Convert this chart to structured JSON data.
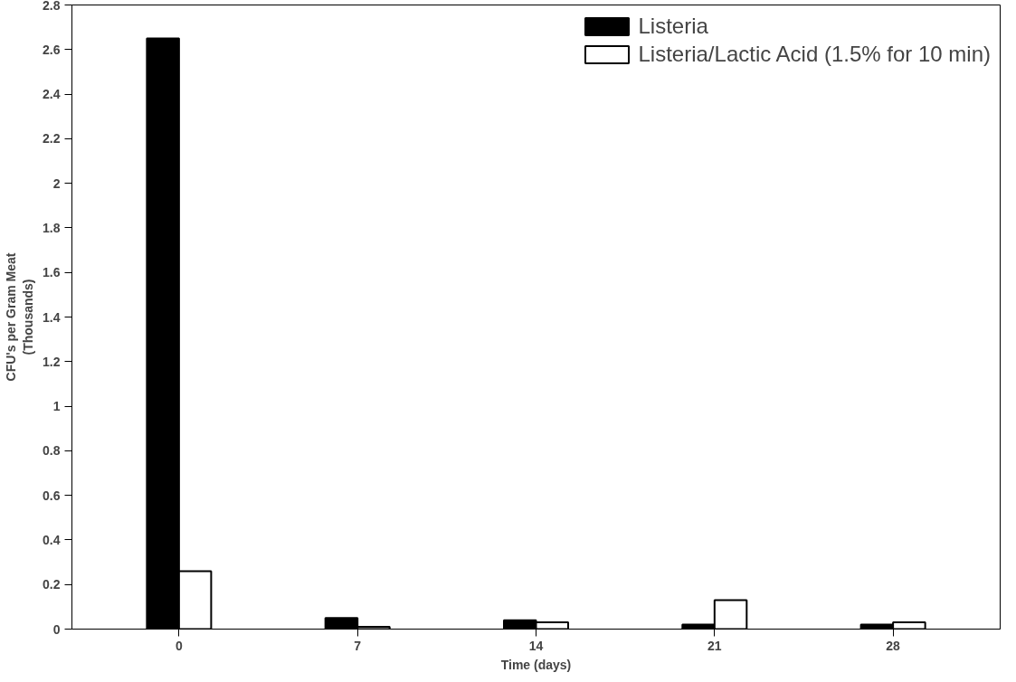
{
  "chart_data": {
    "type": "bar",
    "xlabel": "Time (days)",
    "ylabel": "CFU's per Gram Meat\n(Thousands)",
    "categories": [
      "0",
      "7",
      "14",
      "21",
      "28"
    ],
    "series": [
      {
        "name": "Listeria",
        "color": "#000000",
        "values": [
          2.65,
          0.05,
          0.04,
          0.02,
          0.02
        ]
      },
      {
        "name": "Listeria/Lactic Acid (1.5% for 10 min)",
        "color": "#ffffff",
        "values": [
          0.26,
          0.01,
          0.03,
          0.13,
          0.03
        ]
      }
    ],
    "ylim": [
      0,
      2.8
    ],
    "yticks": [
      0,
      0.2,
      0.4,
      0.6,
      0.8,
      1,
      1.2,
      1.4,
      1.6,
      1.8,
      2,
      2.2,
      2.4,
      2.6,
      2.8
    ],
    "grid": false,
    "legend": "top right"
  }
}
